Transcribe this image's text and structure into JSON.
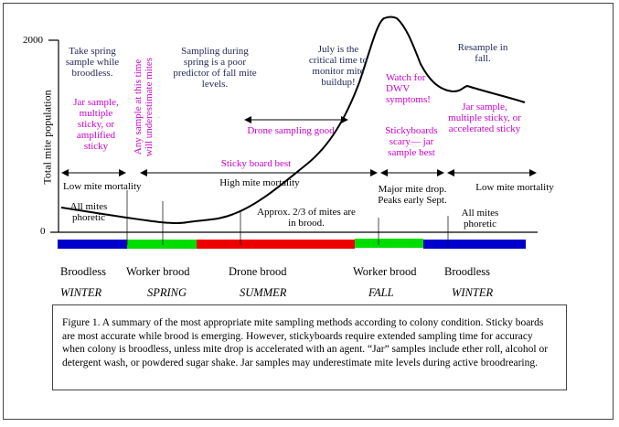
{
  "axis": {
    "y_label": "Total mite population",
    "y_max": "2000",
    "y_min": "0"
  },
  "colors": {
    "broodless": "#0000cc",
    "worker_brood": "#00dd00",
    "drone_brood": "#ee0000",
    "navy_text": "#222a5a",
    "magenta_text": "#cc00cc"
  },
  "notes": {
    "spring_sample": "Take spring sample while broodless.",
    "winter_methods": "Jar sample, multiple sticky, or amplified sticky",
    "underestimate": "Any sample at this time will underestimate mites",
    "spring_predictor": "Sampling during spring is a poor predictor of fall mite levels.",
    "july": "July is the critical time to monitor mite buildup!",
    "dwv": "Watch for DWV symptoms!",
    "resample": "Resample in fall.",
    "drone_sampling": "Drone sampling good",
    "sticky_best": "Sticky board best",
    "stickyboards_scary": "Stickyboards scary— jar sample best",
    "fall_methods": "Jar sample, multiple sticky, or accelerated sticky",
    "low_mortality_1": "Low mite mortality",
    "high_mortality": "High mite mortality",
    "major_drop": "Major mite drop. Peaks early Sept.",
    "low_mortality_2": "Low mite mortality",
    "phoretic_1": "All mites phoretic",
    "in_brood": "Approx. 2/3 of mites are in brood.",
    "phoretic_2": "All mites phoretic"
  },
  "brood_phases": [
    "Broodless",
    "Worker brood",
    "Drone brood",
    "Worker brood",
    "Broodless"
  ],
  "seasons": [
    "WINTER",
    "SPRING",
    "SUMMER",
    "FALL",
    "WINTER"
  ],
  "caption": "Figure 1.  A summary of the most appropriate mite sampling methods according to colony condition.  Sticky boards are most accurate while brood is emerging.  However, stickyboards require extended sampling time for accuracy when colony is broodless, unless mite drop is accelerated with an agent.  “Jar” samples include ether roll, alcohol or detergent wash, or powdered sugar shake.  Jar samples may underestimate mite levels during active broodrearing."
}
